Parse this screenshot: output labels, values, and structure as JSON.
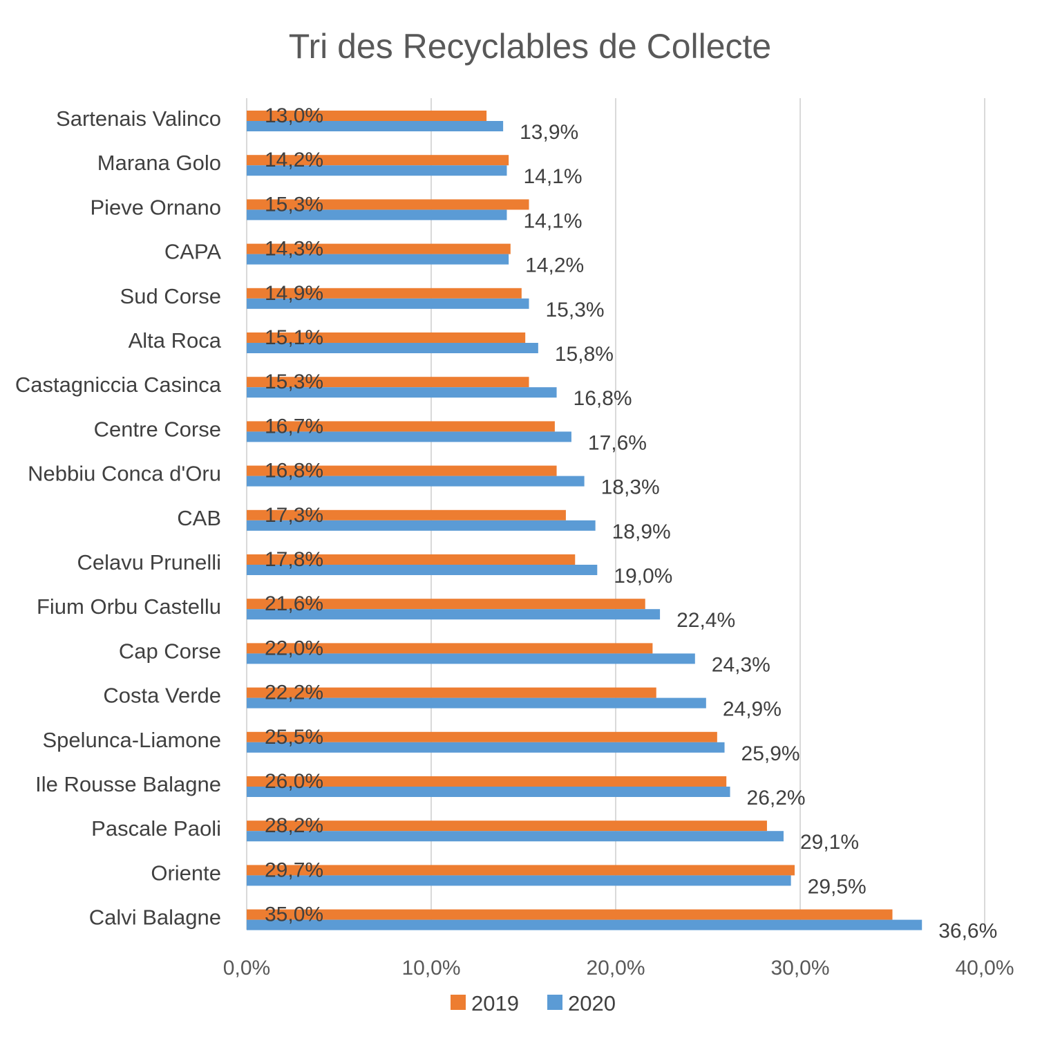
{
  "chart_data": {
    "type": "bar",
    "orientation": "horizontal",
    "title": "Tri des Recyclables de Collecte",
    "categories": [
      "Sartenais Valinco",
      "Marana Golo",
      "Pieve Ornano",
      "CAPA",
      "Sud Corse",
      "Alta Roca",
      "Castagniccia Casinca",
      "Centre Corse",
      "Nebbiu Conca d'Oru",
      "CAB",
      "Celavu Prunelli",
      "Fium Orbu Castellu",
      "Cap Corse",
      "Costa Verde",
      "Spelunca-Liamone",
      "Ile Rousse Balagne",
      "Pascale Paoli",
      "Oriente",
      "Calvi Balagne"
    ],
    "series": [
      {
        "name": "2019",
        "color": "#ED7D31",
        "values": [
          13.0,
          14.2,
          15.3,
          14.3,
          14.9,
          15.1,
          15.3,
          16.7,
          16.8,
          17.3,
          17.8,
          21.6,
          22.0,
          22.2,
          25.5,
          26.0,
          28.2,
          29.7,
          35.0
        ],
        "labels": [
          "13,0%",
          "14,2%",
          "15,3%",
          "14,3%",
          "14,9%",
          "15,1%",
          "15,3%",
          "16,7%",
          "16,8%",
          "17,3%",
          "17,8%",
          "21,6%",
          "22,0%",
          "22,2%",
          "25,5%",
          "26,0%",
          "28,2%",
          "29,7%",
          "35,0%"
        ]
      },
      {
        "name": "2020",
        "color": "#5B9BD5",
        "values": [
          13.9,
          14.1,
          14.1,
          14.2,
          15.3,
          15.8,
          16.8,
          17.6,
          18.3,
          18.9,
          19.0,
          22.4,
          24.3,
          24.9,
          25.9,
          26.2,
          29.1,
          29.5,
          36.6
        ],
        "labels": [
          "13,9%",
          "14,1%",
          "14,1%",
          "14,2%",
          "15,3%",
          "15,8%",
          "16,8%",
          "17,6%",
          "18,3%",
          "18,9%",
          "19,0%",
          "22,4%",
          "24,3%",
          "24,9%",
          "25,9%",
          "26,2%",
          "29,1%",
          "29,5%",
          "36,6%"
        ]
      }
    ],
    "xlim": [
      0,
      40
    ],
    "xticks": [
      0,
      10,
      20,
      30,
      40
    ],
    "xtick_labels": [
      "0,0%",
      "10,0%",
      "20,0%",
      "30,0%",
      "40,0%"
    ],
    "grid": "vertical",
    "legend": "bottom",
    "xlabel": "",
    "ylabel": ""
  }
}
